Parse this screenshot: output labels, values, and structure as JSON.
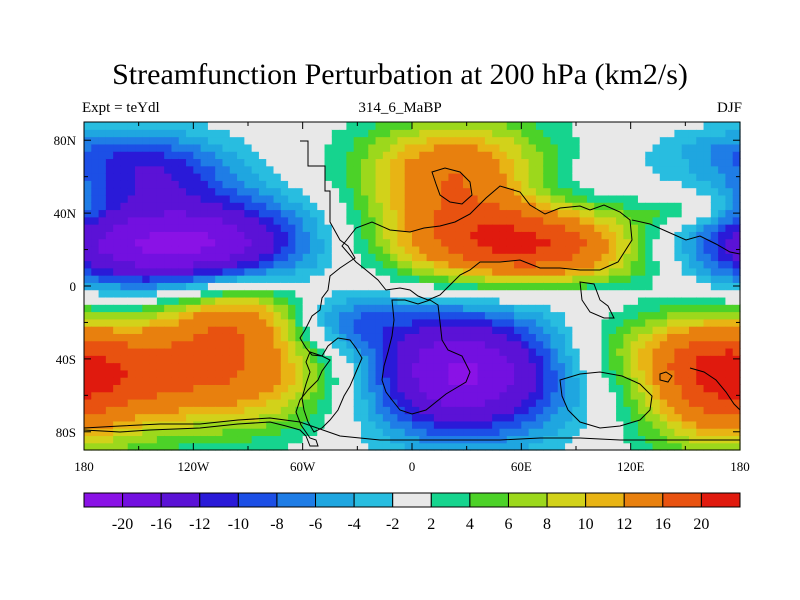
{
  "title": "Streamfunction Perturbation at 200 hPa (km2/s)",
  "left_label": "Expt = teYdl",
  "center_label": "314_6_MaBP",
  "right_label": "DJF",
  "chart_data": {
    "type": "heatmap",
    "title": "Streamfunction Perturbation at 200 hPa (km2/s)",
    "x_ticks": [
      "180",
      "120W",
      "60W",
      "0",
      "60E",
      "120E",
      "180"
    ],
    "x_tick_values": [
      -180,
      -120,
      -60,
      0,
      60,
      120,
      180
    ],
    "y_ticks": [
      "80N",
      "40N",
      "0",
      "40S",
      "80S"
    ],
    "y_tick_values": [
      80,
      40,
      0,
      -40,
      -80
    ],
    "xlim": [
      -180,
      180
    ],
    "ylim": [
      -90,
      90
    ],
    "colorbar": {
      "labels": [
        "-20",
        "-16",
        "-12",
        "-10",
        "-8",
        "-6",
        "-4",
        "-2",
        "2",
        "4",
        "6",
        "8",
        "10",
        "12",
        "16",
        "20"
      ],
      "colors": [
        "#8a12e6",
        "#7310e0",
        "#5b12d6",
        "#2a1ad8",
        "#1c4fe6",
        "#1f7de6",
        "#1fa6e0",
        "#28bde0",
        "#e8e8e8",
        "#16d48e",
        "#4cd228",
        "#9cd81c",
        "#d2d21a",
        "#e8b414",
        "#e8800e",
        "#e85210",
        "#e01a0e"
      ]
    },
    "centers": [
      {
        "lon": -125,
        "lat": 22,
        "value": -22,
        "rlon": 75,
        "rlat": 28
      },
      {
        "lon": -145,
        "lat": 66,
        "value": -10,
        "rlon": 48,
        "rlat": 20
      },
      {
        "lon": 25,
        "lat": -47,
        "value": -22,
        "rlon": 60,
        "rlat": 36
      },
      {
        "lon": -40,
        "lat": -20,
        "value": -8,
        "rlon": 30,
        "rlat": 16
      },
      {
        "lon": 25,
        "lat": 62,
        "value": 16,
        "rlon": 55,
        "rlat": 30
      },
      {
        "lon": 65,
        "lat": 22,
        "value": 20,
        "rlon": 85,
        "rlat": 24
      },
      {
        "lon": -110,
        "lat": -48,
        "value": 16,
        "rlon": 85,
        "rlat": 32
      },
      {
        "lon": -97,
        "lat": -12,
        "value": 12,
        "rlon": 45,
        "rlat": 22
      },
      {
        "lon": 167,
        "lat": -55,
        "value": 14,
        "rlon": 45,
        "rlat": 38
      },
      {
        "lon": 85,
        "lat": 55,
        "value": -4,
        "rlon": 55,
        "rlat": 18
      },
      {
        "lon": 155,
        "lat": 22,
        "value": -6,
        "rlon": 50,
        "rlat": 20
      },
      {
        "lon": 165,
        "lat": 76,
        "value": -3,
        "rlon": 40,
        "rlat": 12
      },
      {
        "lon": 95,
        "lat": -5,
        "value": -3,
        "rlon": 35,
        "rlat": 9
      },
      {
        "lon": 150,
        "lat": 42,
        "value": 5,
        "rlon": 30,
        "rlat": 10
      },
      {
        "lon": 135,
        "lat": -35,
        "value": 5,
        "rlon": 60,
        "rlat": 20
      }
    ]
  }
}
